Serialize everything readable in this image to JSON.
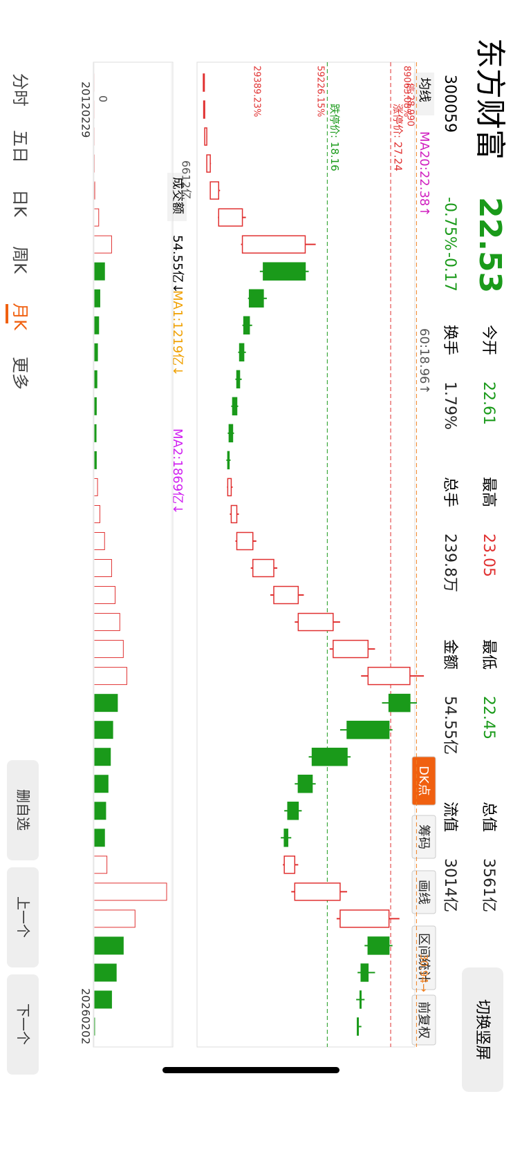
{
  "header": {
    "name": "东方财富",
    "code": "300059",
    "price": "22.53",
    "change_pct": "-0.75%",
    "change": "-0.17",
    "stats": [
      {
        "label": "今开",
        "value": "22.61"
      },
      {
        "label": "换手",
        "value": "1.79%"
      },
      {
        "label": "最高",
        "value": "23.05"
      },
      {
        "label": "总手",
        "value": "239.8万"
      },
      {
        "label": "最低",
        "value": "22.45"
      },
      {
        "label": "金额",
        "value": "54.55亿"
      },
      {
        "label": "总值",
        "value": "3561亿"
      },
      {
        "label": "流值",
        "value": "3014亿"
      }
    ]
  },
  "switch_button": "切换竖屏",
  "toolbar": {
    "ma_select": "均线",
    "ma20": "MA20:22.38↑",
    "ma60": "60:18.96↑",
    "tools": [
      "DK点",
      "筹码",
      "画线",
      "区间统计",
      "前复权"
    ]
  },
  "chart_data": {
    "type": "candlestick",
    "open": [
      0.5,
      0.55,
      0.6,
      0.9,
      1.4,
      2.6,
      6,
      15,
      9,
      7,
      6.2,
      5.6,
      5.2,
      4.6,
      4.1,
      3.9,
      4.4,
      5.2,
      7.5,
      10.5,
      14,
      19,
      24,
      30,
      27,
      21,
      16,
      14,
      12.5,
      12,
      13.5,
      20,
      27,
      24,
      23,
      22.61
    ],
    "close": [
      0.55,
      0.6,
      0.9,
      1.4,
      2.6,
      6,
      15,
      9,
      7,
      6.2,
      5.6,
      5.2,
      4.6,
      4.1,
      3.9,
      4.4,
      5.2,
      7.5,
      10.5,
      14,
      19,
      24,
      30,
      27,
      21,
      16,
      14,
      12.5,
      12,
      13.5,
      20,
      27,
      24,
      23,
      22.9,
      22.53
    ],
    "high": [
      0.6,
      0.65,
      0.95,
      1.5,
      2.8,
      6.5,
      16.5,
      15.5,
      9.5,
      7.4,
      6.5,
      5.9,
      5.4,
      4.8,
      4.3,
      4.6,
      5.5,
      8,
      11,
      14.8,
      20,
      25,
      32,
      31,
      27.5,
      21.5,
      16.5,
      14.5,
      13,
      14,
      21,
      28.5,
      27.5,
      25,
      23.5,
      23.05
    ],
    "low": [
      0.45,
      0.5,
      0.58,
      0.85,
      1.35,
      2.5,
      5.8,
      8.5,
      6.8,
      6,
      5.4,
      5,
      4.4,
      3.9,
      3.7,
      3.8,
      4.2,
      5,
      7.2,
      10,
      13.5,
      18.5,
      23,
      26,
      20,
      15.5,
      13.5,
      12,
      11.5,
      11.8,
      13,
      19.5,
      23.5,
      22.5,
      22.3,
      22.45
    ],
    "ylim": [
      0,
      31
    ],
    "up_color": "#e03030",
    "down_color": "#1a9a1a",
    "price_lines": [
      {
        "label": "涨停价: 27.24",
        "value": 27.24,
        "color": "#e03030"
      },
      {
        "label": "跌停价: 18.16",
        "value": 18.16,
        "color": "#1a9a1a"
      },
      {
        "label": "30.94→",
        "value": 30.94,
        "color": "#f08020"
      }
    ],
    "percent_labels": [
      "89063.08%",
      "59226.15%",
      "29389.23%"
    ],
    "signal_label": "信:28.990",
    "x_labels": [
      "20120229",
      "20260202"
    ]
  },
  "volume": {
    "select": "成交额",
    "current": "54.55亿↓",
    "ma1": "MA1:1219亿↓",
    "ma2": "MA2:1869亿↓",
    "values": [
      5,
      6,
      10,
      20,
      60,
      400,
      1500,
      900,
      500,
      400,
      300,
      250,
      200,
      180,
      200,
      300,
      500,
      900,
      1500,
      1800,
      2200,
      2500,
      2800,
      2000,
      1600,
      1400,
      1200,
      1000,
      900,
      1100,
      6200,
      3500,
      2500,
      1900,
      1500,
      54.55
    ],
    "ylim": [
      0,
      6612
    ],
    "yticks": [
      0,
      {
        "value": 6612,
        "label": "6612亿"
      }
    ]
  },
  "tabs": [
    "分时",
    "五日",
    "日K",
    "周K",
    "月K",
    "更多"
  ],
  "buttons": [
    "删自选",
    "上一个",
    "下一个"
  ]
}
